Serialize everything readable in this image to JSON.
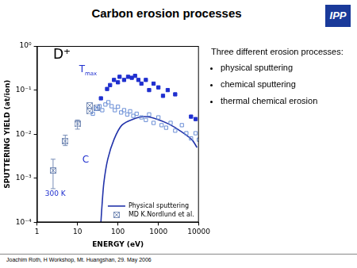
{
  "slide": {
    "title": "Carbon erosion processes",
    "logo": "IPP",
    "text": "Three different erosion processes:",
    "bullets": [
      "physical sputtering",
      "chemical sputtering",
      "thermal chemical erosion"
    ],
    "footer": "Joachim Roth, H Workshop, Mt. Huangshan, 29. May 2006"
  },
  "chart_data": {
    "type": "scatter",
    "x_label": "ENERGY (eV)",
    "y_label": "SPUTTERING YIELD (at/ion)",
    "log": true,
    "grid": false,
    "legend": "lower right",
    "xlim": [
      1,
      10000
    ],
    "xticks": [
      1,
      10,
      100,
      1000,
      10000
    ],
    "ylim": [
      0.0001,
      1
    ],
    "yticks": [
      {
        "value": 0.0001,
        "label": "10⁻⁴"
      },
      {
        "value": 0.001,
        "label": "10⁻³"
      },
      {
        "value": 0.01,
        "label": "10⁻²"
      },
      {
        "value": 0.1,
        "label": "10⁻¹"
      },
      {
        "value": 1,
        "label": "10⁰"
      }
    ],
    "annotations": [
      {
        "text": "D⁺",
        "color": "#000000"
      },
      {
        "text": "T",
        "subscript": "max",
        "color": "#1f2fcf"
      },
      {
        "text": "C",
        "color": "#1f2fcf"
      },
      {
        "text": "300 K",
        "color": "#1f2fcf"
      }
    ],
    "series": [
      {
        "marker": "square",
        "color": "#1f2fcf",
        "x": [
          38,
          54,
          64,
          80,
          100,
          110,
          142,
          178,
          220,
          265,
          320,
          380,
          490,
          590,
          760,
          1000,
          1300,
          1700,
          2600,
          6400,
          8300
        ],
        "values": [
          0.065,
          0.106,
          0.13,
          0.17,
          0.15,
          0.2,
          0.17,
          0.2,
          0.19,
          0.21,
          0.17,
          0.14,
          0.17,
          0.1,
          0.14,
          0.115,
          0.074,
          0.1,
          0.08,
          0.025,
          0.022
        ]
      },
      {
        "marker": "square_open",
        "color": "#6b8fd6",
        "x": [
          24,
          29,
          35,
          41,
          49,
          58,
          70,
          84,
          100,
          120,
          142,
          170,
          200,
          240,
          290,
          380,
          490,
          590,
          760,
          1000,
          1200,
          1550,
          2000,
          2600,
          3800,
          4900,
          6400,
          8300,
          10000
        ],
        "values": [
          0.029,
          0.038,
          0.043,
          0.035,
          0.047,
          0.053,
          0.043,
          0.035,
          0.042,
          0.031,
          0.035,
          0.028,
          0.033,
          0.026,
          0.029,
          0.024,
          0.021,
          0.028,
          0.018,
          0.024,
          0.016,
          0.014,
          0.018,
          0.012,
          0.016,
          0.0105,
          0.008,
          0.0105,
          0.0075
        ]
      },
      {
        "name": "Physical sputtering",
        "type": "line",
        "line_style": "solid",
        "color": "#2233aa",
        "x": [
          38,
          40,
          45,
          56,
          80,
          125,
          240,
          470,
          910,
          1800,
          3400,
          6700,
          9000
        ],
        "values": [
          0.0001,
          0.00021,
          0.0008,
          0.0027,
          0.0076,
          0.016,
          0.022,
          0.025,
          0.022,
          0.017,
          0.012,
          0.0075,
          0.005
        ]
      },
      {
        "name": "MD K.Nordlund et al.",
        "marker": "square_cross",
        "color": "#7a8fb8",
        "x": [
          2.5,
          5,
          10,
          20,
          20,
          30
        ],
        "values": [
          0.0015,
          0.007,
          0.017,
          0.033,
          0.045,
          0.04
        ],
        "errors": [
          [
            0.00058,
            0.0027
          ],
          [
            0.0055,
            0.0095
          ],
          [
            0.013,
            0.021
          ],
          null,
          null,
          null
        ]
      }
    ]
  }
}
